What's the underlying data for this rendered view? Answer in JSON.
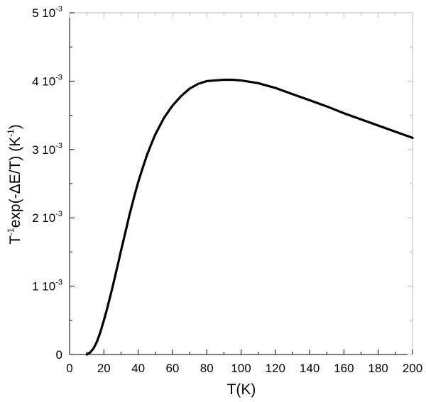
{
  "chart_data": {
    "type": "line",
    "xlabel": "T(K)",
    "ylabel": {
      "base1": "T",
      "sup1": "-1",
      "mid": "exp(-ΔE/T) (K",
      "sup2": "-1",
      "end": ")"
    },
    "xlim": [
      0,
      200
    ],
    "ylim": [
      0,
      0.005
    ],
    "x_ticks": [
      {
        "value": 0,
        "label": "0"
      },
      {
        "value": 20,
        "label": "20"
      },
      {
        "value": 40,
        "label": "40"
      },
      {
        "value": 60,
        "label": "60"
      },
      {
        "value": 80,
        "label": "80"
      },
      {
        "value": 100,
        "label": "100"
      },
      {
        "value": 120,
        "label": "120"
      },
      {
        "value": 140,
        "label": "140"
      },
      {
        "value": 160,
        "label": "160"
      },
      {
        "value": 180,
        "label": "180"
      },
      {
        "value": 200,
        "label": "200"
      }
    ],
    "y_ticks": [
      {
        "value": 0,
        "mantissa": "0",
        "exp": ""
      },
      {
        "value": 0.001,
        "mantissa": "1 10",
        "exp": "-3"
      },
      {
        "value": 0.002,
        "mantissa": "2 10",
        "exp": "-3"
      },
      {
        "value": 0.003,
        "mantissa": "3 10",
        "exp": "-3"
      },
      {
        "value": 0.004,
        "mantissa": "4 10",
        "exp": "-3"
      },
      {
        "value": 0.005,
        "mantissa": "5 10",
        "exp": "-3"
      }
    ],
    "grid": false,
    "series": [
      {
        "color": "#000000",
        "x": [
          10,
          12,
          14,
          16,
          18,
          20,
          22,
          25,
          28,
          30,
          32,
          35,
          38,
          40,
          42,
          45,
          48,
          50,
          55,
          60,
          65,
          70,
          75,
          80,
          85,
          90,
          95,
          100,
          110,
          120,
          130,
          140,
          150,
          160,
          170,
          180,
          190,
          200
        ],
        "y": [
          0.0,
          3e-05,
          9e-05,
          0.00019,
          0.00033,
          0.0005,
          0.00068,
          0.00098,
          0.0013,
          0.00152,
          0.00173,
          0.00205,
          0.00234,
          0.00252,
          0.00268,
          0.00291,
          0.0031,
          0.00322,
          0.00346,
          0.00364,
          0.00378,
          0.00389,
          0.00396,
          0.004,
          0.00401,
          0.00402,
          0.00402,
          0.00401,
          0.00397,
          0.0039,
          0.00381,
          0.00372,
          0.00363,
          0.00353,
          0.00344,
          0.00335,
          0.00326,
          0.00317
        ]
      }
    ]
  }
}
